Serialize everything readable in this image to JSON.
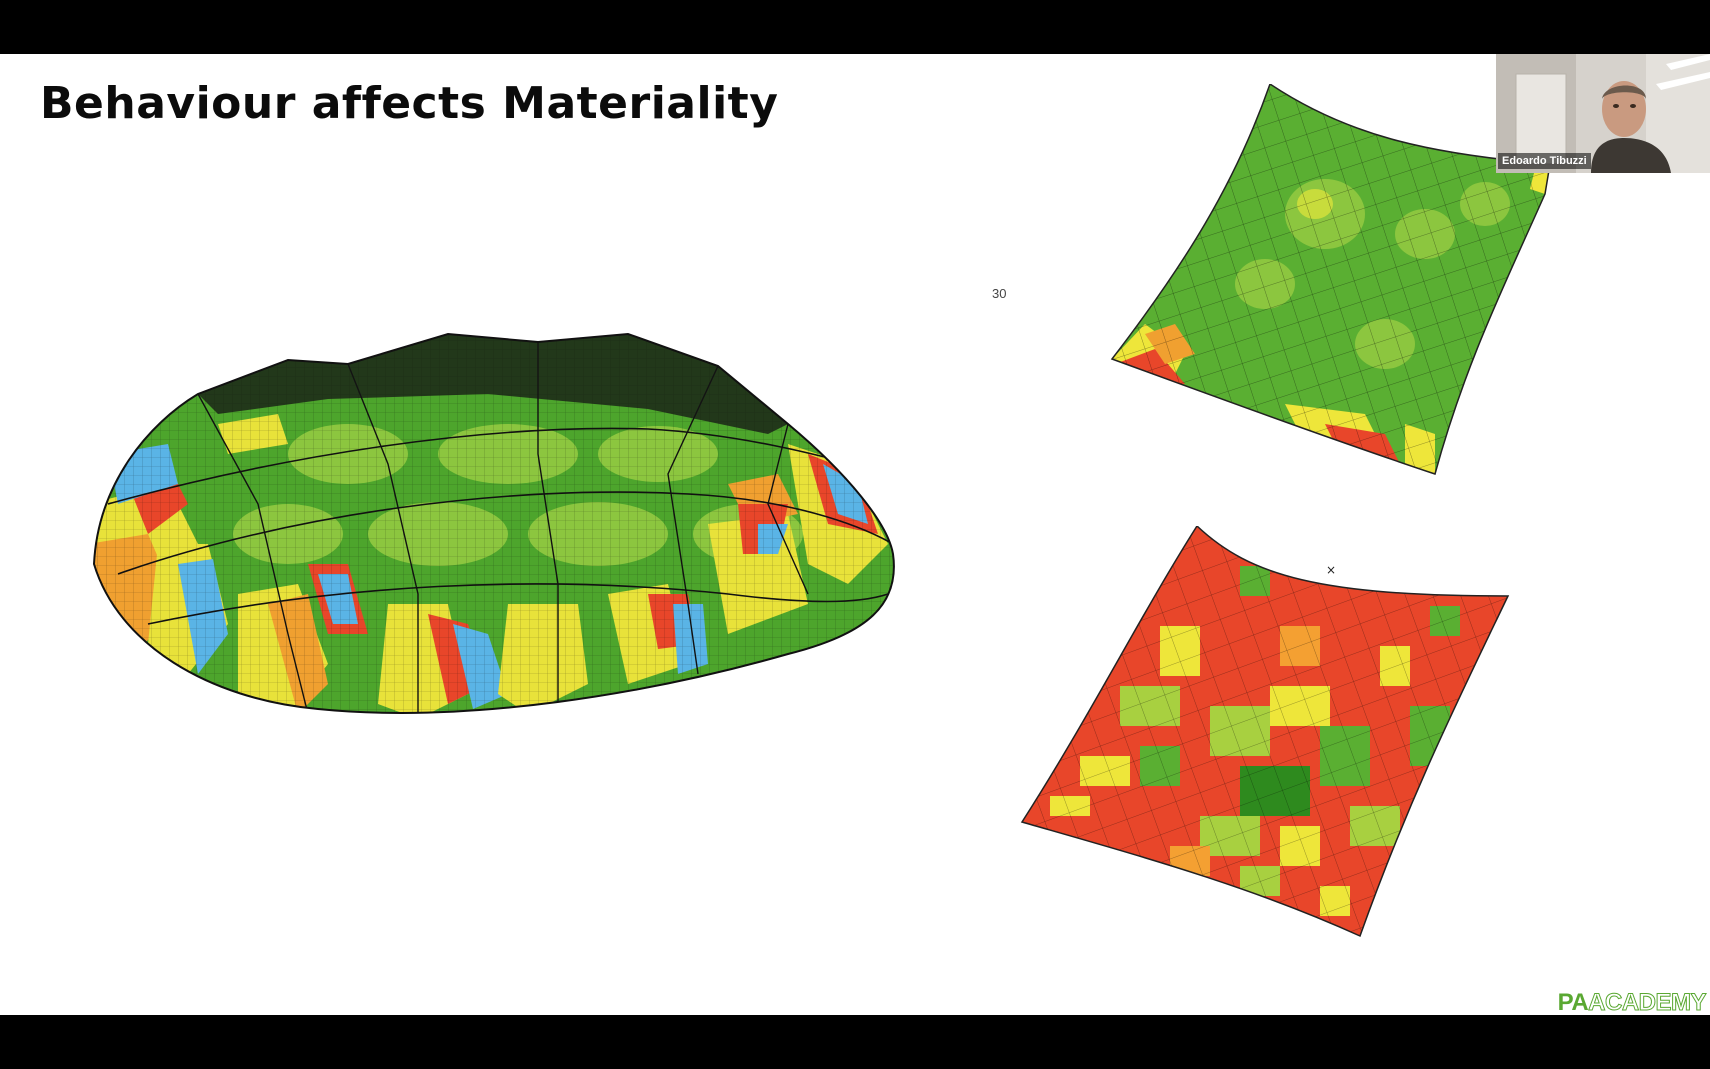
{
  "slide": {
    "title": "Behaviour affects Materiality",
    "stray_label": "30",
    "cursor_glyph": "×"
  },
  "figures": {
    "dome": {
      "description_icon": "shell-dome-analysis-icon",
      "palette": [
        "#2e8a1e",
        "#4da52c",
        "#8cc63f",
        "#e8e23a",
        "#f0a030",
        "#e8462a",
        "#5ab4e6"
      ]
    },
    "panel_top": {
      "description_icon": "panel-analysis-green-icon",
      "palette": [
        "#3e9a26",
        "#5aaf32",
        "#8cc63f",
        "#c8dc3c",
        "#eee63a",
        "#f0a030",
        "#e8462a"
      ]
    },
    "panel_bottom": {
      "description_icon": "panel-analysis-red-icon",
      "palette": [
        "#e8462a",
        "#ef6a2c",
        "#f4a032",
        "#eee63a",
        "#a8d040",
        "#5aaf32",
        "#2e8a1e"
      ]
    }
  },
  "webcam": {
    "participant_name": "Edoardo Tibuzzi"
  },
  "branding": {
    "logo_pa": "PA",
    "logo_academy": "ACADEMY",
    "accent": "#5aa832"
  }
}
